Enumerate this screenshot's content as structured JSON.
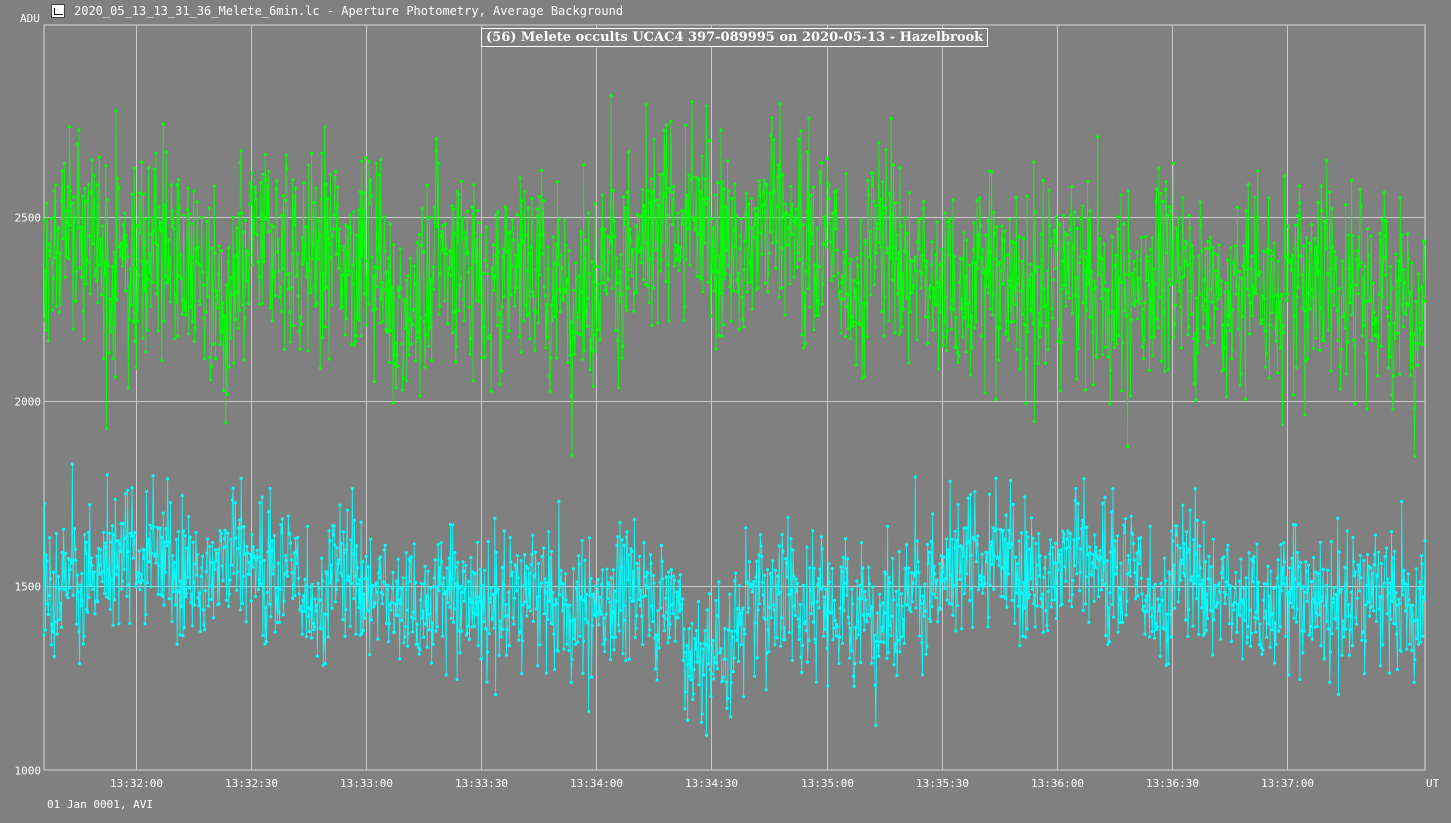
{
  "window": {
    "title": "2020_05_13_13_31_36_Melete_6min.lc - Aperture Photometry, Average Background"
  },
  "footer": {
    "date_label": "01 Jan 0001, AVI"
  },
  "chart_data": {
    "type": "line",
    "title": "(56) Melete occults UCAC4 397-089995 on 2020-05-13 - Hazelbrook",
    "xlabel": "UT",
    "ylabel": "ADU",
    "x_ticks": [
      "13:32:00",
      "13:32:30",
      "13:33:00",
      "13:33:30",
      "13:34:00",
      "13:34:30",
      "13:35:00",
      "13:35:30",
      "13:36:00",
      "13:36:30",
      "13:37:00"
    ],
    "x_range": [
      "13:31:36",
      "13:37:36"
    ],
    "y_ticks": [
      1000,
      1500,
      2000,
      2500
    ],
    "ylim": [
      1000,
      3020
    ],
    "grid": true,
    "series": [
      {
        "color": "#00ff00",
        "level": 2380,
        "noise": 140,
        "min": 1850,
        "max": 2940
      },
      {
        "color": "#00ffff",
        "level": 1500,
        "noise": 95,
        "min": 1000,
        "max": 1960,
        "dip": {
          "start": "13:34:23",
          "end": "13:34:36",
          "level": 1330
        }
      }
    ]
  }
}
